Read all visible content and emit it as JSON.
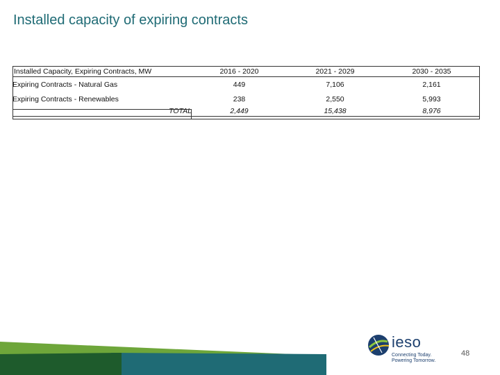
{
  "slide": {
    "title": "Installed capacity of expiring contracts",
    "page_number": "48"
  },
  "table": {
    "header_label": "Installed Capacity, Expiring Contracts, MW",
    "columns": [
      "2016 - 2020",
      "2021 - 2029",
      "2030 - 2035"
    ],
    "rows": [
      {
        "label": "Expiring Contracts - Natural Gas",
        "values": [
          "449",
          "7,106",
          "2,161"
        ]
      },
      {
        "label": "Expiring Contracts - Renewables",
        "values": [
          "238",
          "2,550",
          "5,993"
        ]
      }
    ],
    "total": {
      "label": "TOTAL",
      "values": [
        "2,449",
        "15,438",
        "8,976"
      ]
    }
  },
  "logo": {
    "wordmark": "ieso",
    "tagline_1": "Connecting Today.",
    "tagline_2": "Powering Tomorrow."
  },
  "colors": {
    "title": "#1f6b75",
    "footer_dark": "#1e5b2c",
    "footer_green": "#6ea63a",
    "footer_teal": "#1f6b75",
    "logo_blue": "#1c3f6e"
  }
}
